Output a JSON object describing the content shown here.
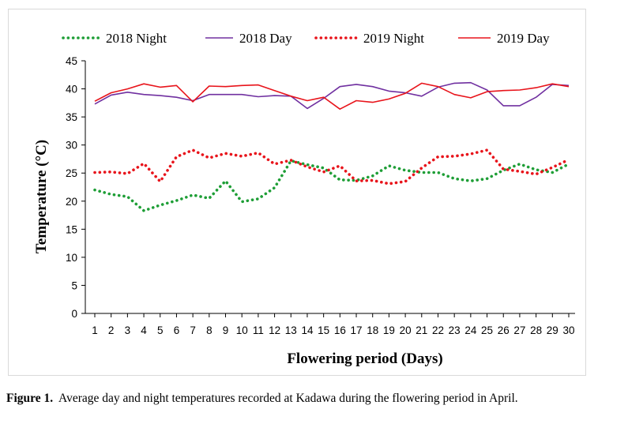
{
  "chart_data": {
    "type": "line",
    "xlabel": "Flowering period (Days)",
    "ylabel": "Temperature (°C)",
    "ylim": [
      0,
      45
    ],
    "yticks": [
      0,
      5,
      10,
      15,
      20,
      25,
      30,
      35,
      40,
      45
    ],
    "x": [
      1,
      2,
      3,
      4,
      5,
      6,
      7,
      8,
      9,
      10,
      11,
      12,
      13,
      14,
      15,
      16,
      17,
      18,
      19,
      20,
      21,
      22,
      23,
      24,
      25,
      26,
      27,
      28,
      29,
      30
    ],
    "grid": false,
    "legend_position": "top",
    "series": [
      {
        "name": "2018 Night",
        "color": "#1e9e36",
        "style": "dotted",
        "values": [
          22.0,
          21.2,
          20.8,
          18.3,
          19.3,
          20.1,
          21.1,
          20.5,
          23.6,
          19.9,
          20.4,
          22.4,
          27.2,
          26.5,
          25.9,
          23.8,
          23.7,
          24.5,
          26.3,
          25.5,
          25.1,
          25.1,
          24.0,
          23.6,
          24.0,
          25.5,
          26.6,
          25.6,
          25.1,
          26.6
        ]
      },
      {
        "name": "2018 Day",
        "color": "#7030a0",
        "style": "solid",
        "values": [
          37.3,
          38.9,
          39.4,
          39.0,
          38.8,
          38.5,
          37.9,
          39.0,
          39.0,
          39.0,
          38.6,
          38.8,
          38.7,
          36.5,
          38.3,
          40.4,
          40.8,
          40.4,
          39.6,
          39.3,
          38.7,
          40.3,
          41.0,
          41.1,
          39.8,
          37.0,
          37.0,
          38.5,
          40.8,
          40.6
        ]
      },
      {
        "name": "2019 Night",
        "color": "#e8141b",
        "style": "dotted",
        "values": [
          25.1,
          25.2,
          24.9,
          26.7,
          23.5,
          27.9,
          29.1,
          27.7,
          28.5,
          28.0,
          28.6,
          26.6,
          27.3,
          26.1,
          25.2,
          26.3,
          23.6,
          23.7,
          23.1,
          23.5,
          25.9,
          27.9,
          28.0,
          28.4,
          29.1,
          25.7,
          25.3,
          24.8,
          26.0,
          27.4
        ]
      },
      {
        "name": "2019 Day",
        "color": "#e8141b",
        "style": "solid",
        "values": [
          37.8,
          39.3,
          40.0,
          40.9,
          40.3,
          40.6,
          37.7,
          40.5,
          40.4,
          40.6,
          40.7,
          39.7,
          38.7,
          37.9,
          38.5,
          36.4,
          37.9,
          37.6,
          38.2,
          39.2,
          41.0,
          40.4,
          39.0,
          38.4,
          39.5,
          39.7,
          39.8,
          40.2,
          40.9,
          40.4
        ]
      }
    ]
  },
  "caption": {
    "label": "Figure 1.",
    "text": "Average day and night temperatures recorded at Kadawa during the flowering period in April."
  }
}
